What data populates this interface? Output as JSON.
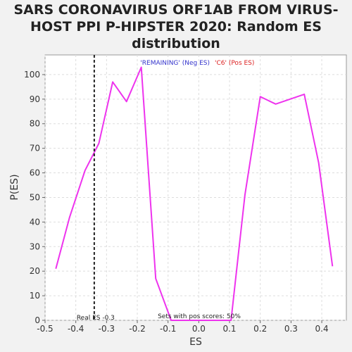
{
  "chart_data": {
    "type": "line",
    "title": [
      "SARS CORONAVIRUS ORF1AB FROM VIRUS-",
      "HOST PPI P-HIPSTER 2020: Random ES",
      "distribution"
    ],
    "xlabel": "ES",
    "ylabel": "P(ES)",
    "xlim": [
      -0.5,
      0.48
    ],
    "ylim": [
      0,
      108
    ],
    "x_ticks": [
      -0.5,
      -0.4,
      -0.3,
      -0.2,
      -0.1,
      0.0,
      0.1,
      0.2,
      0.3,
      0.4
    ],
    "x_tick_labels": [
      "-0.5",
      "-0.4",
      "-0.3",
      "-0.2",
      "-0.1",
      "0.0",
      "0.1",
      "0.2",
      "0.3",
      "0.4"
    ],
    "y_ticks": [
      0,
      10,
      20,
      30,
      40,
      50,
      60,
      70,
      80,
      90,
      100
    ],
    "y_tick_labels": [
      "0",
      "10",
      "20",
      "30",
      "40",
      "50",
      "60",
      "70",
      "80",
      "90",
      "100"
    ],
    "grid": true,
    "legend": {
      "neg": "'REMAINING' (Neg ES)",
      "pos": "'C6' (Pos ES)"
    },
    "series": [
      {
        "color": "#ee33ee",
        "x": [
          -0.465,
          -0.42,
          -0.37,
          -0.325,
          -0.28,
          -0.235,
          -0.187,
          -0.14,
          -0.09,
          0.0,
          0.105,
          0.15,
          0.2,
          0.25,
          0.343,
          0.39,
          0.435
        ],
        "y": [
          21,
          42,
          61,
          72,
          97,
          89,
          103,
          17,
          0,
          0,
          0,
          51,
          91,
          88,
          92,
          64,
          22
        ]
      }
    ],
    "real_es": -0.34,
    "real_es_label": "Real ES -0.3",
    "annotation": "Sets with pos scores: 50%"
  }
}
